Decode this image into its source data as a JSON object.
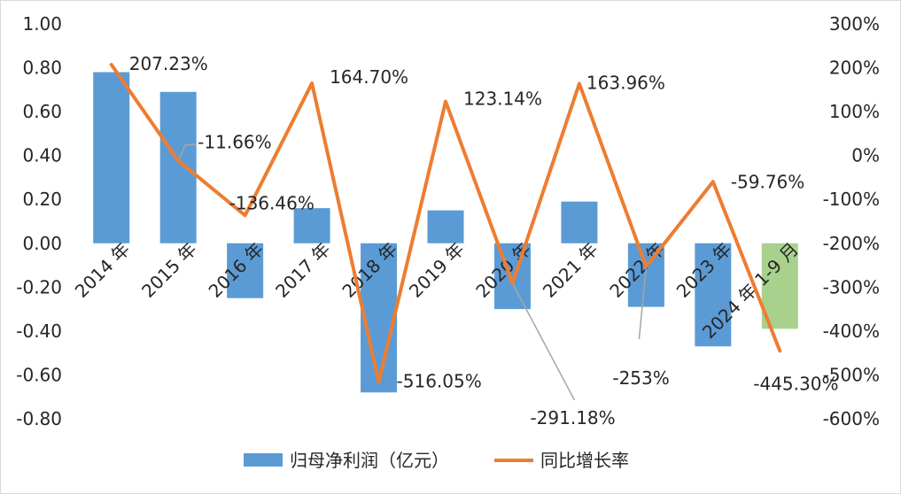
{
  "chart_data": {
    "type": "bar",
    "combo": "bar + line (secondary axis)",
    "title": "",
    "categories": [
      "2014 年",
      "2015 年",
      "2016 年",
      "2017 年",
      "2018 年",
      "2019 年",
      "2020 年",
      "2021 年",
      "2022 年",
      "2023 年",
      "2024 年 1-9 月"
    ],
    "series": [
      {
        "name": "归母净利润（亿元）",
        "type": "bar",
        "axis": "left",
        "color": "#5b9bd5",
        "highlight_color": "#a9d18e",
        "highlight_index": 10,
        "values": [
          0.78,
          0.69,
          -0.25,
          0.16,
          -0.68,
          0.15,
          -0.3,
          0.19,
          -0.29,
          -0.47,
          -0.39
        ]
      },
      {
        "name": "同比增长率",
        "type": "line",
        "axis": "right",
        "color": "#ed7d31",
        "values": [
          207.23,
          -11.66,
          -136.46,
          164.7,
          -516.05,
          123.14,
          -291.18,
          163.96,
          -253,
          -59.76,
          -445.3
        ],
        "labels": [
          "207.23%",
          "-11.66%",
          "-136.46%",
          "164.70%",
          "-516.05%",
          "123.14%",
          "-291.18%",
          "163.96%",
          "-253%",
          "-59.76%",
          "-445.30%"
        ]
      }
    ],
    "y_left": {
      "ylim": [
        -0.8,
        1.0
      ],
      "ticks": [
        1.0,
        0.8,
        0.6,
        0.4,
        0.2,
        0.0,
        -0.2,
        -0.4,
        -0.6,
        -0.8
      ],
      "tick_labels": [
        "1.00",
        "0.80",
        "0.60",
        "0.40",
        "0.20",
        "0.00",
        "-0.20",
        "-0.40",
        "-0.60",
        "-0.80"
      ]
    },
    "y_right": {
      "ylim": [
        -600,
        300
      ],
      "ticks": [
        300,
        200,
        100,
        0,
        -100,
        -200,
        -300,
        -400,
        -500,
        -600
      ],
      "tick_labels": [
        "300%",
        "200%",
        "100%",
        "0%",
        "-100%",
        "-200%",
        "-300%",
        "-400%",
        "-500%",
        "-600%"
      ]
    },
    "grid": false,
    "legend_position": "bottom"
  },
  "colors": {
    "bar": "#5b9bd5",
    "bar_highlight": "#a9d18e",
    "line": "#ed7d31",
    "leader": "#a6a6a6",
    "axis_text": "#262626"
  }
}
